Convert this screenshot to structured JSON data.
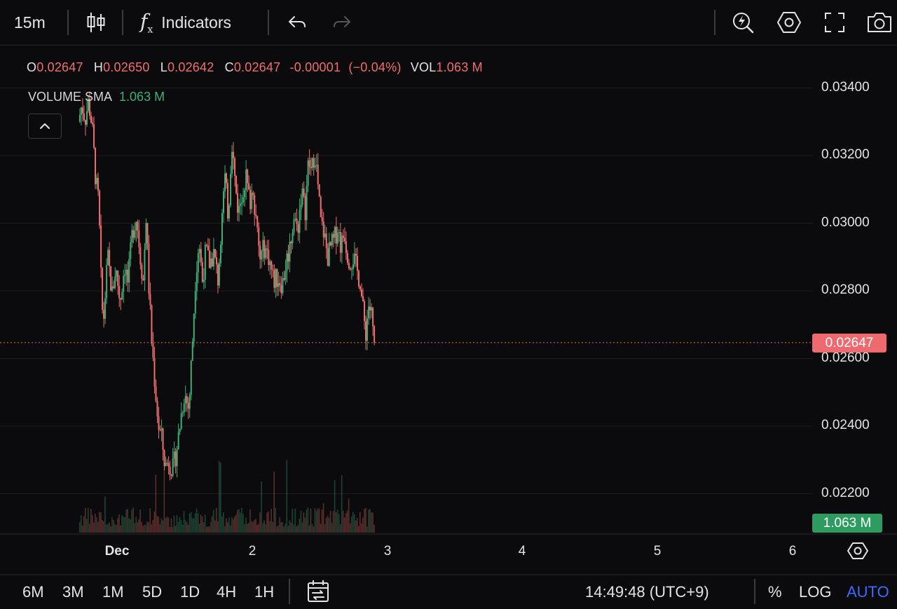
{
  "toolbar": {
    "interval": "15m",
    "candle_icon": "candlestick-icon",
    "indicators_icon": "fx-icon",
    "indicators_label": "Indicators",
    "undo_icon": "undo-icon",
    "redo_icon": "redo-icon",
    "right_icons": [
      "quick-trade-icon",
      "settings-hex-icon",
      "fullscreen-icon",
      "camera-icon"
    ]
  },
  "legend": {
    "o_key": "O",
    "o_val": "0.02647",
    "h_key": "H",
    "h_val": "0.02650",
    "l_key": "L",
    "l_val": "0.02642",
    "c_key": "C",
    "c_val": "0.02647",
    "change": "-0.00001",
    "change_pct": "(−0.04%)",
    "vol_key": "VOL",
    "vol_val": "1.063 M",
    "sma_label": "VOLUME SMA",
    "sma_val": "1.063 M"
  },
  "price_axis": {
    "ticks": [
      "0.03400",
      "0.03200",
      "0.03000",
      "0.02800",
      "0.02600",
      "0.02400",
      "0.02200"
    ],
    "current_price": "0.02647",
    "current_volume": "1.063 M"
  },
  "time_axis": {
    "labels": [
      "Dec",
      "2",
      "3",
      "4",
      "5",
      "6"
    ]
  },
  "bottombar": {
    "ranges": [
      "6M",
      "3M",
      "1M",
      "5D",
      "1D",
      "4H",
      "1H"
    ],
    "date_range_icon": "calendar-range-icon",
    "clock": "14:49:48 (UTC+9)",
    "percent": "%",
    "log": "LOG",
    "auto": "AUTO"
  },
  "colors": {
    "up": "#3fae78",
    "down": "#f26d6d",
    "accent": "#3d6bff",
    "background": "#0b0b0d"
  },
  "chart_data": {
    "type": "candlestick",
    "interval": "15m",
    "ylim": [
      0.0216,
      0.0346
    ],
    "y_ticks": [
      0.034,
      0.032,
      0.03,
      0.028,
      0.026,
      0.024,
      0.022
    ],
    "x_ticks": [
      "Dec",
      "2",
      "3",
      "4",
      "5",
      "6"
    ],
    "current_price": 0.02647,
    "price_path": [
      [
        0.0,
        0.033
      ],
      [
        0.6,
        0.0335
      ],
      [
        1.2,
        0.0331
      ],
      [
        1.8,
        0.0336
      ],
      [
        2.4,
        0.0329
      ],
      [
        3.1,
        0.0312
      ],
      [
        3.6,
        0.0306
      ],
      [
        4.1,
        0.0278
      ],
      [
        4.4,
        0.027
      ],
      [
        5.2,
        0.029
      ],
      [
        6.0,
        0.0279
      ],
      [
        6.6,
        0.0287
      ],
      [
        7.4,
        0.0277
      ],
      [
        8.2,
        0.0288
      ],
      [
        8.8,
        0.0282
      ],
      [
        9.6,
        0.0298
      ],
      [
        10.3,
        0.0302
      ],
      [
        11.0,
        0.029
      ],
      [
        11.5,
        0.0283
      ],
      [
        12.0,
        0.0302
      ],
      [
        12.5,
        0.0281
      ],
      [
        13.0,
        0.0265
      ],
      [
        13.6,
        0.0252
      ],
      [
        14.2,
        0.024
      ],
      [
        14.8,
        0.0236
      ],
      [
        15.4,
        0.0228
      ],
      [
        16.0,
        0.023
      ],
      [
        16.8,
        0.0227
      ],
      [
        17.6,
        0.0235
      ],
      [
        18.2,
        0.0243
      ],
      [
        18.8,
        0.025
      ],
      [
        19.6,
        0.0245
      ],
      [
        20.2,
        0.0264
      ],
      [
        20.8,
        0.0285
      ],
      [
        21.4,
        0.0295
      ],
      [
        22.0,
        0.0283
      ],
      [
        22.6,
        0.0292
      ],
      [
        23.2,
        0.0288
      ],
      [
        24.0,
        0.0291
      ],
      [
        24.8,
        0.0283
      ],
      [
        25.5,
        0.0305
      ],
      [
        26.0,
        0.0313
      ],
      [
        26.6,
        0.0302
      ],
      [
        27.2,
        0.0325
      ],
      [
        27.8,
        0.0312
      ],
      [
        28.4,
        0.0303
      ],
      [
        29.0,
        0.0309
      ],
      [
        29.7,
        0.0314
      ],
      [
        30.4,
        0.0306
      ],
      [
        31.0,
        0.0311
      ],
      [
        31.6,
        0.0299
      ],
      [
        32.2,
        0.0289
      ],
      [
        33.0,
        0.0293
      ],
      [
        33.8,
        0.029
      ],
      [
        34.6,
        0.0283
      ],
      [
        35.4,
        0.0284
      ],
      [
        36.2,
        0.0282
      ],
      [
        36.8,
        0.0288
      ],
      [
        37.6,
        0.0294
      ],
      [
        38.2,
        0.0302
      ],
      [
        38.9,
        0.0298
      ],
      [
        39.6,
        0.031
      ],
      [
        40.2,
        0.0303
      ],
      [
        40.8,
        0.0318
      ],
      [
        41.4,
        0.0315
      ],
      [
        41.9,
        0.0322
      ],
      [
        42.4,
        0.0313
      ],
      [
        43.0,
        0.03
      ],
      [
        43.6,
        0.0297
      ],
      [
        44.2,
        0.029
      ],
      [
        44.8,
        0.0293
      ],
      [
        45.4,
        0.0295
      ],
      [
        46.0,
        0.0299
      ],
      [
        46.6,
        0.0293
      ],
      [
        47.2,
        0.0298
      ],
      [
        47.6,
        0.0292
      ],
      [
        48.2,
        0.0289
      ],
      [
        48.8,
        0.029
      ],
      [
        49.4,
        0.0286
      ],
      [
        50.0,
        0.0283
      ],
      [
        50.6,
        0.0272
      ],
      [
        51.0,
        0.0268
      ],
      [
        51.5,
        0.0276
      ],
      [
        52.0,
        0.0273
      ],
      [
        52.4,
        0.0265
      ]
    ],
    "x_range_hours": [
      0,
      54.5
    ],
    "volume_label": "1.063 M"
  }
}
